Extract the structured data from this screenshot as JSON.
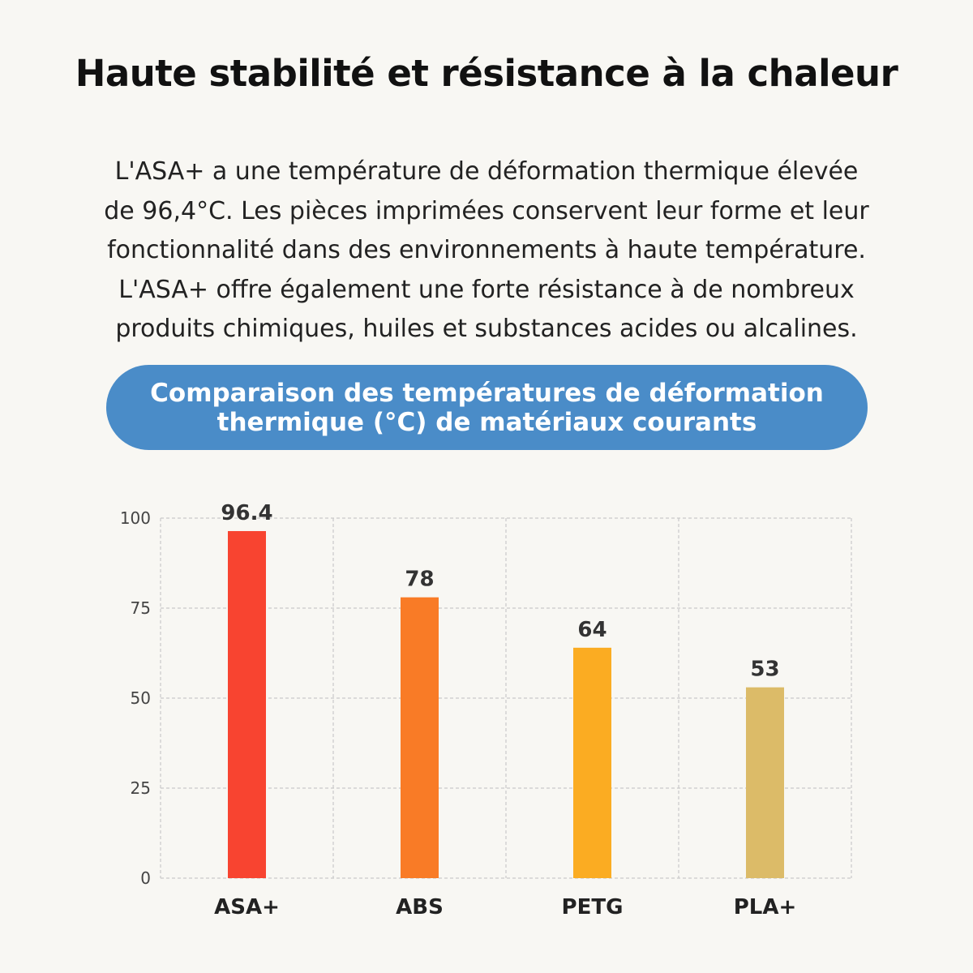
{
  "header": {
    "title": "Haute stabilité et résistance à la chaleur"
  },
  "description": {
    "lines": [
      "L'ASA+ a une température de déformation thermique élevée",
      "de 96,4°C. Les pièces imprimées conservent leur forme et leur",
      "fonctionnalité dans des environnements à haute température.",
      "L'ASA+ offre également une forte résistance à de nombreux",
      "produits chimiques, huiles et substances acides ou alcalines."
    ]
  },
  "chart_banner": {
    "lines": [
      "Comparaison des températures de déformation",
      "thermique (°C) de matériaux courants"
    ],
    "color": "#4a8cc8"
  },
  "chart_data": {
    "type": "bar",
    "title": "Comparaison des températures de déformation thermique (°C) de matériaux courants",
    "categories": [
      "ASA+",
      "ABS",
      "PETG",
      "PLA+"
    ],
    "values": [
      96.4,
      78,
      64,
      53
    ],
    "value_labels": [
      "96.4",
      "78",
      "64",
      "53"
    ],
    "colors": [
      "#f84430",
      "#f97b26",
      "#fbac22",
      "#dcbb68"
    ],
    "ylim": [
      0,
      100
    ],
    "yticks": [
      0,
      25,
      50,
      75,
      100
    ],
    "xlabel": "",
    "ylabel": "",
    "grid": true,
    "legend": "none"
  }
}
